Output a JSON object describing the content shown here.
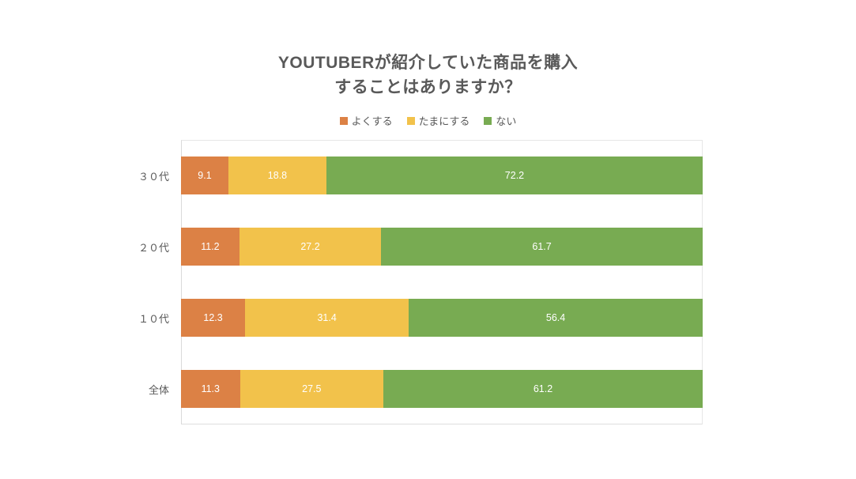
{
  "chart": {
    "title_line1": "YOUTUBERが紹介していた商品を購入",
    "title_line2": "することはありますか？"
  },
  "chart_data": {
    "type": "bar",
    "orientation": "horizontal",
    "stacked": true,
    "percent_stacked": true,
    "title": "YOUTUBERが紹介していた商品を購入することはありますか？",
    "categories": [
      "３０代",
      "２０代",
      "１０代",
      "全体"
    ],
    "series": [
      {
        "name": "よくする",
        "color": "#DC8145",
        "values": [
          9.1,
          11.2,
          12.3,
          11.3
        ]
      },
      {
        "name": "たまにする",
        "color": "#F2C24B",
        "values": [
          18.8,
          27.2,
          31.4,
          27.5
        ]
      },
      {
        "name": "ない",
        "color": "#78AB52",
        "values": [
          72.2,
          61.7,
          56.4,
          61.2
        ]
      }
    ],
    "xlabel": "",
    "ylabel": "",
    "xlim": [
      0,
      100
    ],
    "grid": false,
    "legend_position": "top",
    "value_labels": "inside-center-white"
  },
  "colors": {
    "title_text": "#595959",
    "category_text": "#595959",
    "legend_text": "#595959",
    "value_text": "#FFFFFF",
    "plot_border": "#E0E0E0",
    "background": "#FFFFFF"
  }
}
